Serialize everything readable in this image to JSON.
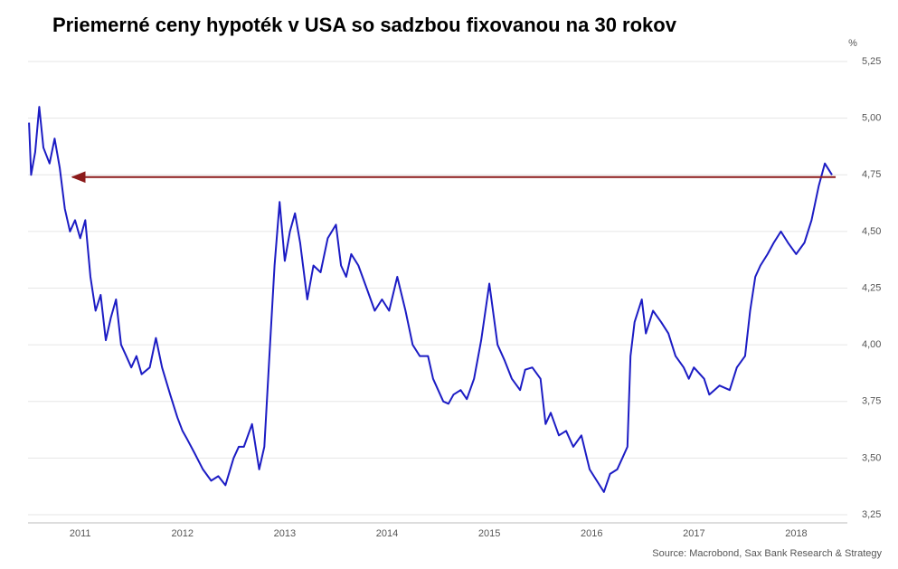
{
  "chart_data": {
    "type": "line",
    "title": "Priemerné ceny hypoték v USA so sadzbou fixovanou na 30 rokov",
    "y_unit": "%",
    "source": "Source: Macrobond, Sax Bank Research & Strategy",
    "color": "#1c1cc4",
    "x": [
      2011.0,
      2011.02,
      2011.06,
      2011.1,
      2011.14,
      2011.2,
      2011.25,
      2011.3,
      2011.35,
      2011.4,
      2011.45,
      2011.5,
      2011.55,
      2011.6,
      2011.65,
      2011.7,
      2011.75,
      2011.8,
      2011.85,
      2011.9,
      2011.95,
      2012.0,
      2012.05,
      2012.1,
      2012.18,
      2012.24,
      2012.3,
      2012.38,
      2012.45,
      2012.5,
      2012.55,
      2012.62,
      2012.7,
      2012.78,
      2012.85,
      2012.92,
      2013.0,
      2013.05,
      2013.1,
      2013.18,
      2013.25,
      2013.3,
      2013.35,
      2013.4,
      2013.45,
      2013.5,
      2013.55,
      2013.6,
      2013.65,
      2013.72,
      2013.78,
      2013.85,
      2013.92,
      2014.0,
      2014.05,
      2014.1,
      2014.15,
      2014.22,
      2014.3,
      2014.38,
      2014.45,
      2014.52,
      2014.6,
      2014.68,
      2014.75,
      2014.82,
      2014.9,
      2014.95,
      2015.05,
      2015.1,
      2015.15,
      2015.22,
      2015.28,
      2015.35,
      2015.42,
      2015.5,
      2015.58,
      2015.65,
      2015.72,
      2015.8,
      2015.85,
      2015.92,
      2016.0,
      2016.05,
      2016.1,
      2016.18,
      2016.25,
      2016.32,
      2016.4,
      2016.48,
      2016.55,
      2016.62,
      2016.68,
      2016.75,
      2016.8,
      2016.85,
      2016.88,
      2016.92,
      2016.99,
      2017.03,
      2017.1,
      2017.18,
      2017.25,
      2017.32,
      2017.4,
      2017.45,
      2017.5,
      2017.6,
      2017.65,
      2017.7,
      2017.75,
      2017.85,
      2017.92,
      2018.0,
      2018.05,
      2018.1,
      2018.15,
      2018.22,
      2018.28,
      2018.35,
      2018.42,
      2018.5,
      2018.58,
      2018.65,
      2018.72,
      2018.78,
      2018.85
    ],
    "values": [
      4.98,
      4.75,
      4.85,
      5.05,
      4.87,
      4.8,
      4.91,
      4.78,
      4.6,
      4.5,
      4.55,
      4.47,
      4.55,
      4.3,
      4.15,
      4.22,
      4.02,
      4.12,
      4.2,
      4.0,
      3.95,
      3.9,
      3.95,
      3.87,
      3.9,
      4.03,
      3.9,
      3.78,
      3.68,
      3.62,
      3.58,
      3.52,
      3.45,
      3.4,
      3.42,
      3.38,
      3.5,
      3.55,
      3.55,
      3.65,
      3.45,
      3.55,
      3.95,
      4.35,
      4.63,
      4.37,
      4.5,
      4.58,
      4.45,
      4.2,
      4.35,
      4.32,
      4.47,
      4.53,
      4.35,
      4.3,
      4.4,
      4.35,
      4.25,
      4.15,
      4.2,
      4.15,
      4.3,
      4.15,
      4.0,
      3.95,
      3.95,
      3.85,
      3.75,
      3.74,
      3.78,
      3.8,
      3.76,
      3.85,
      4.02,
      4.27,
      4.0,
      3.93,
      3.85,
      3.8,
      3.89,
      3.9,
      3.85,
      3.65,
      3.7,
      3.6,
      3.62,
      3.55,
      3.6,
      3.45,
      3.4,
      3.35,
      3.43,
      3.45,
      3.5,
      3.55,
      3.95,
      4.1,
      4.2,
      4.05,
      4.15,
      4.1,
      4.05,
      3.95,
      3.9,
      3.85,
      3.9,
      3.85,
      3.78,
      3.8,
      3.82,
      3.8,
      3.9,
      3.95,
      4.15,
      4.3,
      4.35,
      4.4,
      4.45,
      4.5,
      4.45,
      4.4,
      4.45,
      4.55,
      4.7,
      4.8,
      4.75
    ],
    "reference_line": {
      "value": 4.74,
      "color": "#8b1a1a"
    },
    "xlim": [
      2010.99,
      2019.0
    ],
    "xticks": [
      {
        "value": 2011.5,
        "label": "2011"
      },
      {
        "value": 2012.5,
        "label": "2012"
      },
      {
        "value": 2013.5,
        "label": "2013"
      },
      {
        "value": 2014.5,
        "label": "2014"
      },
      {
        "value": 2015.5,
        "label": "2015"
      },
      {
        "value": 2016.5,
        "label": "2016"
      },
      {
        "value": 2017.5,
        "label": "2017"
      },
      {
        "value": 2018.5,
        "label": "2018"
      }
    ],
    "ylim": [
      3.25,
      5.25
    ],
    "yticks": [
      {
        "value": 3.25,
        "label": "3,25"
      },
      {
        "value": 3.5,
        "label": "3,50"
      },
      {
        "value": 3.75,
        "label": "3,75"
      },
      {
        "value": 4.0,
        "label": "4,00"
      },
      {
        "value": 4.25,
        "label": "4,25"
      },
      {
        "value": 4.5,
        "label": "4,50"
      },
      {
        "value": 4.75,
        "label": "4,75"
      },
      {
        "value": 5.0,
        "label": "5,00"
      },
      {
        "value": 5.25,
        "label": "5,25"
      }
    ],
    "grid": true
  }
}
